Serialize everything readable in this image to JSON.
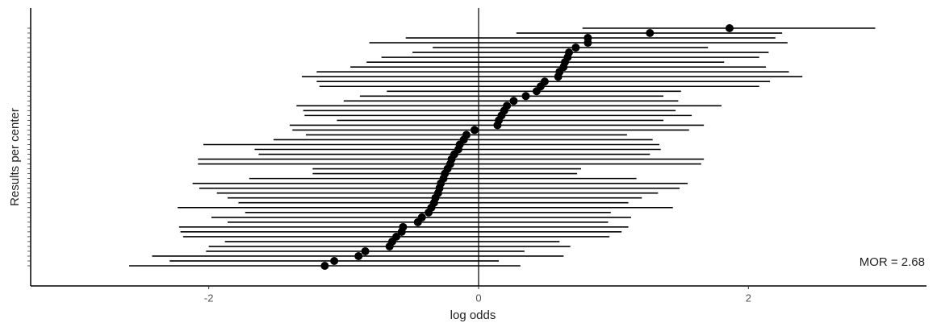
{
  "chart_data": {
    "type": "caterpillar",
    "x_label": "log odds",
    "y_label": "Results per center",
    "annotation": "MOR = 2.68",
    "categories": [
      null,
      null,
      null,
      null,
      null,
      null,
      null,
      null,
      null,
      null,
      null,
      null,
      null,
      null,
      null,
      null,
      null,
      null,
      null,
      null,
      null,
      null,
      null,
      null,
      null,
      null,
      null,
      null,
      null,
      null,
      null,
      null,
      null,
      null,
      null,
      null,
      null,
      null,
      null,
      null,
      null,
      null,
      null,
      null,
      null,
      null,
      null,
      null,
      null,
      null
    ],
    "values": [
      -1.14,
      -1.07,
      -0.89,
      -0.84,
      -0.66,
      -0.64,
      -0.61,
      -0.57,
      -0.56,
      -0.45,
      -0.42,
      -0.37,
      -0.35,
      -0.33,
      -0.32,
      -0.3,
      -0.29,
      -0.28,
      -0.26,
      -0.25,
      -0.23,
      -0.21,
      -0.2,
      -0.18,
      -0.15,
      -0.14,
      -0.11,
      -0.09,
      -0.03,
      0.14,
      0.15,
      0.17,
      0.19,
      0.21,
      0.26,
      0.35,
      0.43,
      0.46,
      0.49,
      0.59,
      0.6,
      0.63,
      0.64,
      0.66,
      0.67,
      0.72,
      0.81,
      0.81,
      1.27,
      1.86
    ],
    "lower": [
      -2.59,
      -2.29,
      -2.42,
      -2.02,
      -2.0,
      -1.88,
      -2.19,
      -2.21,
      -2.22,
      -1.86,
      -1.98,
      -1.73,
      -2.23,
      -1.78,
      -1.86,
      -1.94,
      -2.07,
      -2.12,
      -1.7,
      -1.23,
      -1.23,
      -2.08,
      -2.08,
      -1.63,
      -1.66,
      -2.04,
      -1.52,
      -1.28,
      -1.38,
      -1.4,
      -1.05,
      -1.29,
      -1.3,
      -1.35,
      -1.0,
      -0.88,
      -0.68,
      -1.18,
      -1.2,
      -1.31,
      -1.2,
      -0.95,
      -0.83,
      -0.72,
      -0.49,
      -0.34,
      -0.81,
      -0.54,
      0.28,
      0.77
    ],
    "upper": [
      0.31,
      0.15,
      0.63,
      0.34,
      0.68,
      0.6,
      0.97,
      1.06,
      1.11,
      0.96,
      1.13,
      0.98,
      1.44,
      1.11,
      1.21,
      1.33,
      1.49,
      1.55,
      1.17,
      0.73,
      0.76,
      1.65,
      1.67,
      1.27,
      1.35,
      1.34,
      1.29,
      1.1,
      1.56,
      1.67,
      1.37,
      1.58,
      1.46,
      1.8,
      1.48,
      1.37,
      1.5,
      2.08,
      2.16,
      2.4,
      2.3,
      2.13,
      1.82,
      2.08,
      2.15,
      1.7,
      2.29,
      2.2,
      2.25,
      2.94
    ],
    "color": "#000000",
    "vline": 0,
    "xlim": [
      -3.32,
      3.32
    ],
    "xticks": [
      -2,
      0,
      2
    ],
    "grid": false
  }
}
